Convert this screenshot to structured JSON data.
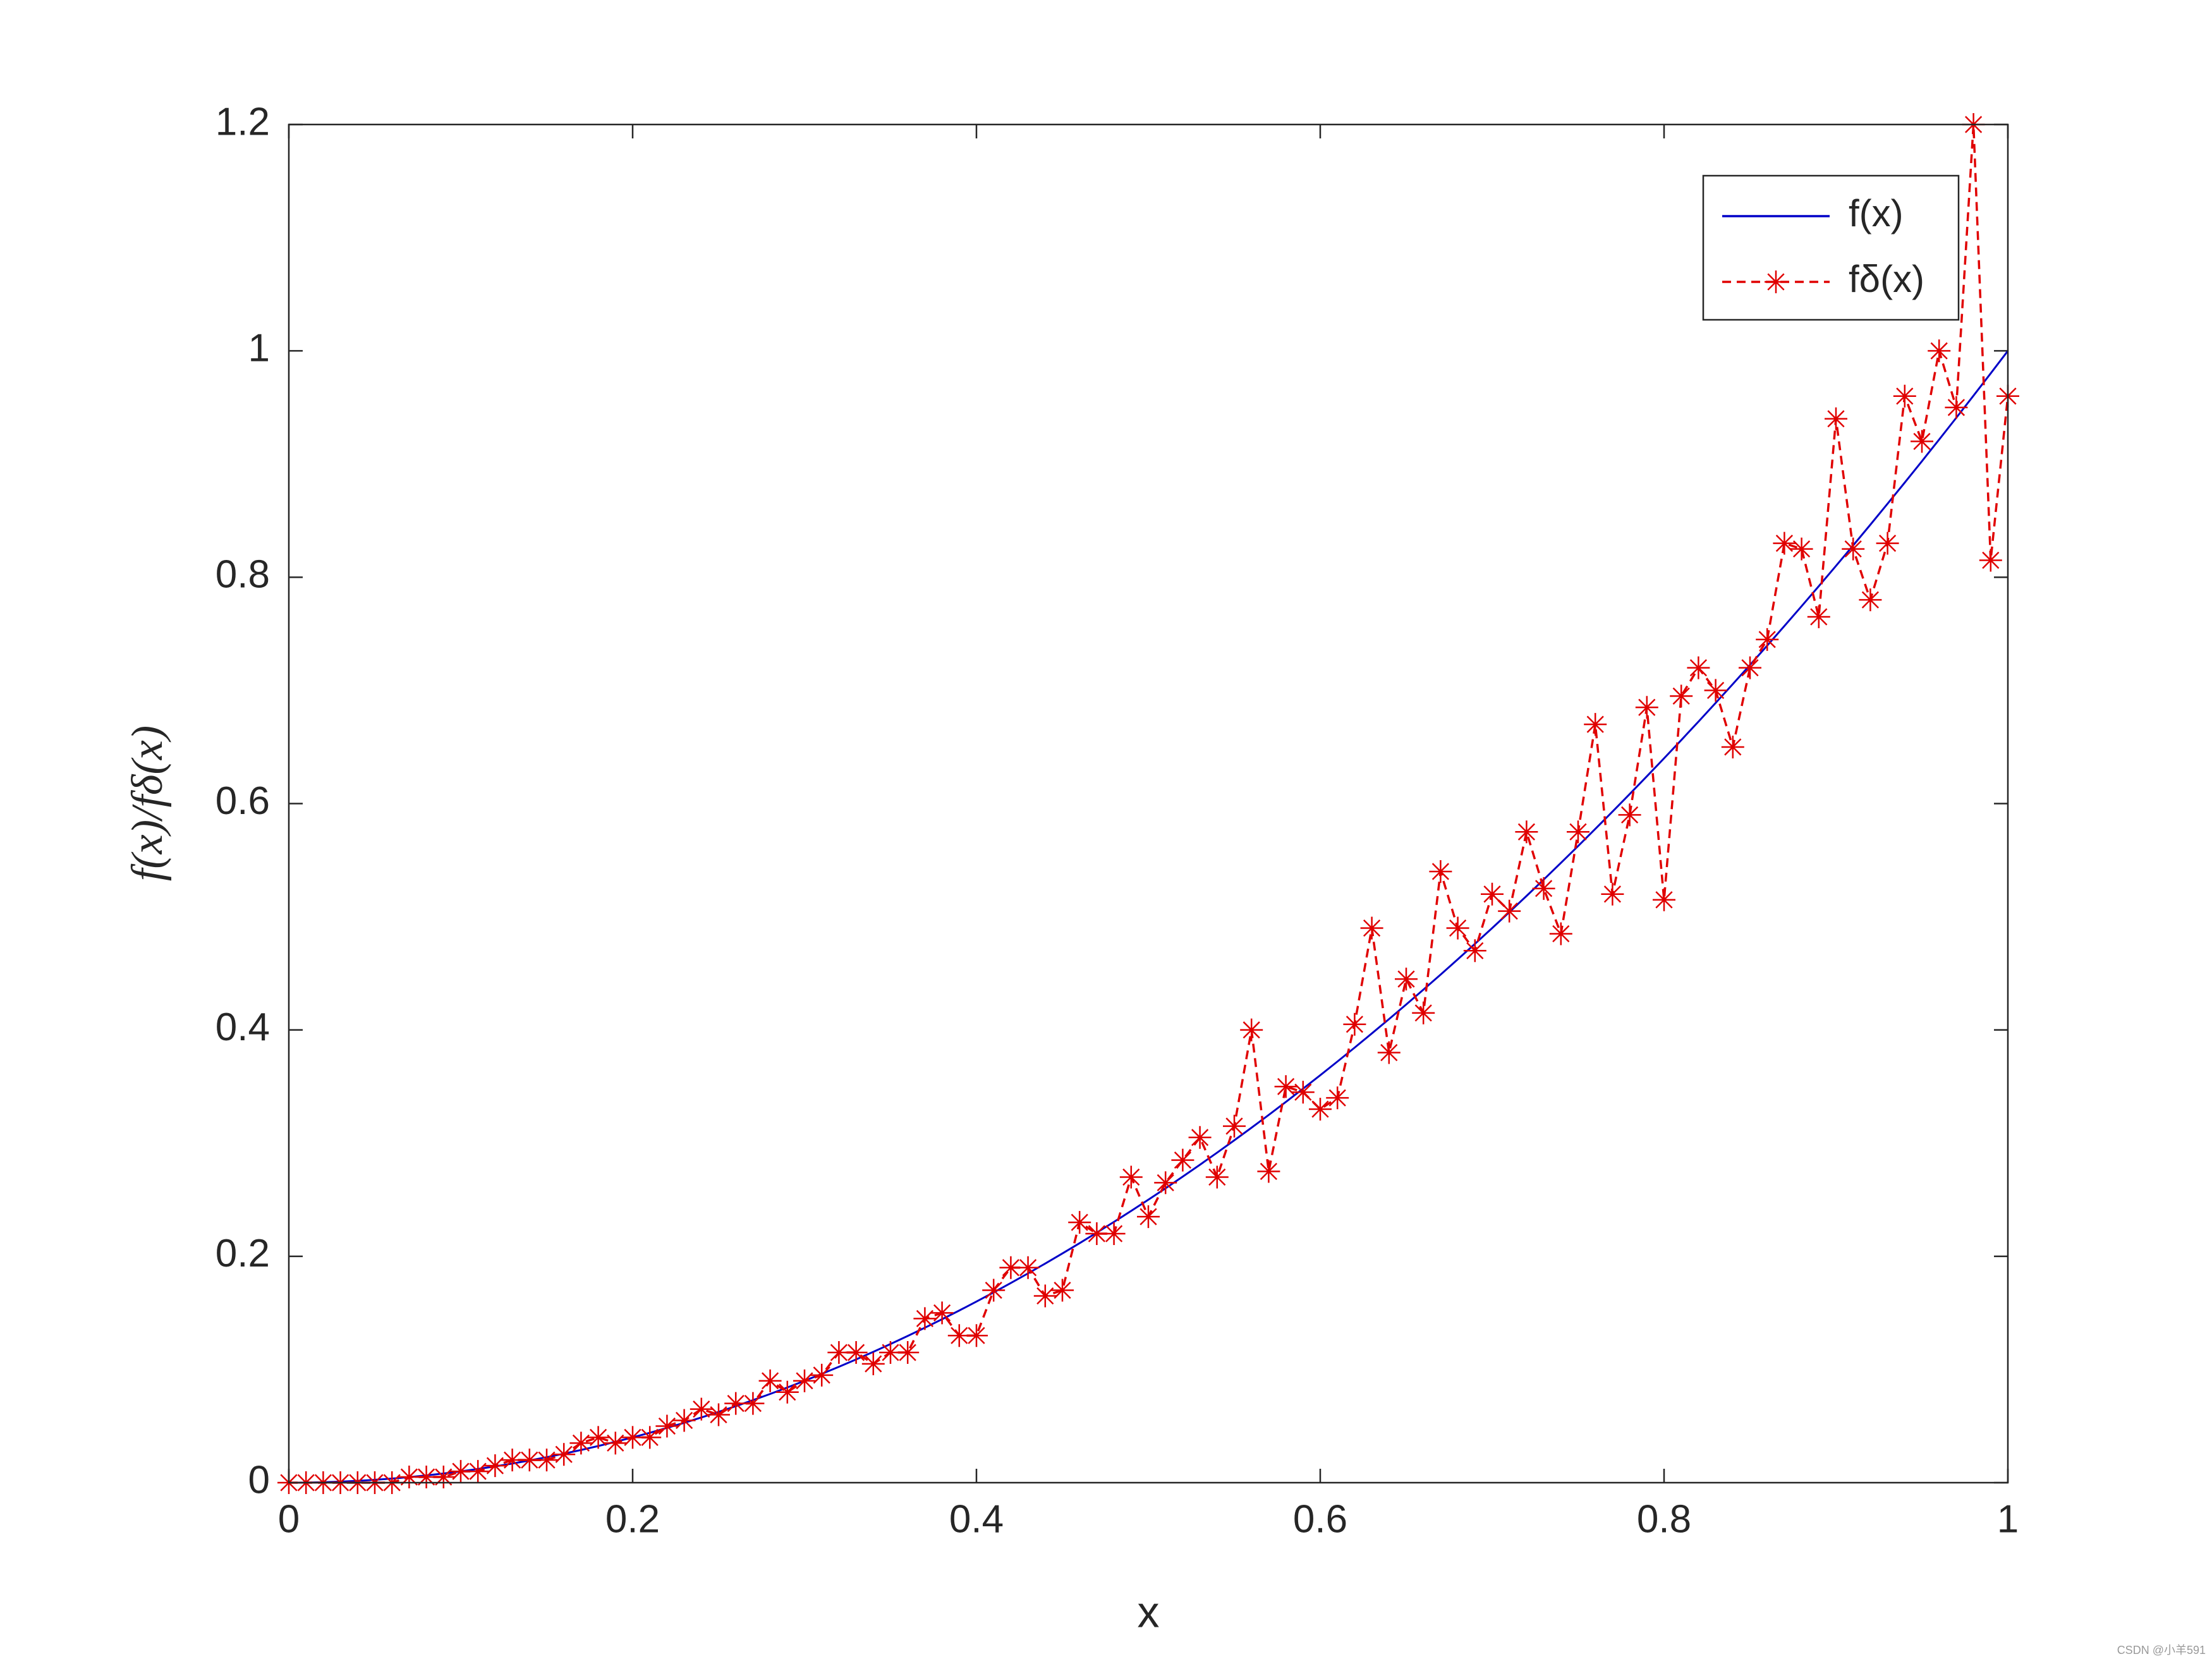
{
  "chart_data": {
    "type": "line",
    "xlabel": "x",
    "ylabel": "f(x)/fδ(x)",
    "watermark": "CSDN @小羊591",
    "x": [
      0,
      0.01,
      0.02,
      0.03,
      0.04,
      0.05,
      0.06,
      0.07,
      0.08,
      0.09,
      0.1,
      0.11,
      0.12,
      0.13,
      0.14,
      0.15,
      0.16,
      0.17,
      0.18,
      0.19,
      0.2,
      0.21,
      0.22,
      0.23,
      0.24,
      0.25,
      0.26,
      0.27,
      0.28,
      0.29,
      0.3,
      0.31,
      0.32,
      0.33,
      0.34,
      0.35,
      0.36,
      0.37,
      0.38,
      0.39,
      0.4,
      0.41,
      0.42,
      0.43,
      0.44,
      0.45,
      0.46,
      0.47,
      0.48,
      0.49,
      0.5,
      0.51,
      0.52,
      0.53,
      0.54,
      0.55,
      0.56,
      0.57,
      0.58,
      0.59,
      0.6,
      0.61,
      0.62,
      0.63,
      0.64,
      0.65,
      0.66,
      0.67,
      0.68,
      0.69,
      0.7,
      0.71,
      0.72,
      0.73,
      0.74,
      0.75,
      0.76,
      0.77,
      0.78,
      0.79,
      0.8,
      0.81,
      0.82,
      0.83,
      0.84,
      0.85,
      0.86,
      0.87,
      0.88,
      0.89,
      0.9,
      0.91,
      0.92,
      0.93,
      0.94,
      0.95,
      0.96,
      0.97,
      0.98,
      0.99,
      1
    ],
    "series": [
      {
        "name": "f(x)",
        "color": "#0000c8",
        "line_style": "solid",
        "marker": "none",
        "values": [
          0,
          0.0001,
          0.0004,
          0.0009,
          0.0016,
          0.0025,
          0.0036,
          0.0049,
          0.0064,
          0.0081,
          0.01,
          0.0121,
          0.0144,
          0.0169,
          0.0196,
          0.0225,
          0.0256,
          0.0289,
          0.0324,
          0.0361,
          0.04,
          0.0441,
          0.0484,
          0.0529,
          0.0576,
          0.0625,
          0.0676,
          0.0729,
          0.0784,
          0.0841,
          0.09,
          0.0961,
          0.1024,
          0.1089,
          0.1156,
          0.1225,
          0.1296,
          0.1369,
          0.1444,
          0.1521,
          0.16,
          0.1681,
          0.1764,
          0.1849,
          0.1936,
          0.2025,
          0.2116,
          0.2209,
          0.2304,
          0.2401,
          0.25,
          0.2601,
          0.2704,
          0.2809,
          0.2916,
          0.3025,
          0.3136,
          0.3249,
          0.3364,
          0.3481,
          0.36,
          0.3721,
          0.3844,
          0.3969,
          0.4096,
          0.4225,
          0.4356,
          0.4489,
          0.4624,
          0.4761,
          0.49,
          0.5041,
          0.5184,
          0.5329,
          0.5476,
          0.5625,
          0.5776,
          0.5929,
          0.6084,
          0.6241,
          0.64,
          0.6561,
          0.6724,
          0.6889,
          0.7056,
          0.7225,
          0.7396,
          0.7569,
          0.7744,
          0.7921,
          0.81,
          0.8281,
          0.8464,
          0.8649,
          0.8836,
          0.9025,
          0.9216,
          0.9409,
          0.9604,
          0.9801,
          1
        ]
      },
      {
        "name": "fδ(x)",
        "color": "#e00000",
        "line_style": "dashed",
        "marker": "asterisk",
        "values": [
          0,
          0,
          0,
          0,
          0,
          0,
          0,
          0.005,
          0.005,
          0.005,
          0.01,
          0.01,
          0.015,
          0.02,
          0.02,
          0.02,
          0.025,
          0.035,
          0.04,
          0.035,
          0.04,
          0.04,
          0.05,
          0.055,
          0.065,
          0.06,
          0.07,
          0.07,
          0.09,
          0.08,
          0.09,
          0.095,
          0.115,
          0.115,
          0.105,
          0.115,
          0.115,
          0.145,
          0.15,
          0.13,
          0.13,
          0.17,
          0.19,
          0.19,
          0.165,
          0.17,
          0.23,
          0.22,
          0.22,
          0.27,
          0.235,
          0.265,
          0.285,
          0.305,
          0.27,
          0.315,
          0.4,
          0.275,
          0.35,
          0.345,
          0.33,
          0.34,
          0.405,
          0.49,
          0.38,
          0.445,
          0.415,
          0.54,
          0.49,
          0.47,
          0.52,
          0.505,
          0.575,
          0.525,
          0.485,
          0.575,
          0.67,
          0.52,
          0.59,
          0.685,
          0.515,
          0.695,
          0.72,
          0.7,
          0.65,
          0.72,
          0.745,
          0.83,
          0.825,
          0.765,
          0.94,
          0.825,
          0.78,
          0.83,
          0.96,
          0.92,
          1.0,
          0.95,
          1.2,
          0.815,
          0.96
        ]
      }
    ],
    "xlim": [
      0,
      1
    ],
    "ylim": [
      0,
      1.2
    ],
    "xticks": [
      0,
      0.2,
      0.4,
      0.6,
      0.8,
      1
    ],
    "yticks": [
      0,
      0.2,
      0.4,
      0.6,
      0.8,
      1,
      1.2
    ],
    "grid": false,
    "legend": "top-right"
  }
}
